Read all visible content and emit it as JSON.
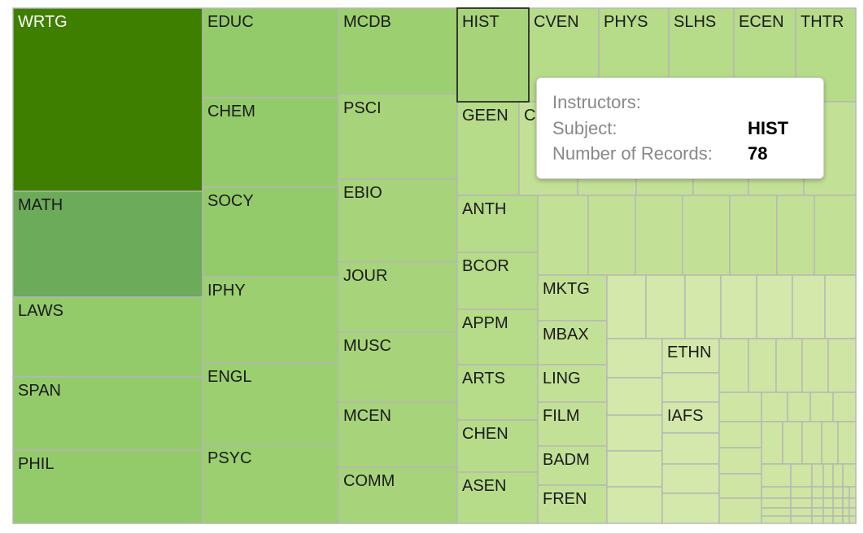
{
  "chart_data": {
    "type": "treemap",
    "measure": "Number of Records",
    "colors": {
      "dark": "#3f7f00",
      "mid": "#6bab59",
      "light": "#93cb6b",
      "pale": "#cfe5a3",
      "border": "#b6b6b6"
    },
    "labeled_cells": [
      "WRTG",
      "MATH",
      "LAWS",
      "SPAN",
      "PHIL",
      "EDUC",
      "CHEM",
      "SOCY",
      "IPHY",
      "ENGL",
      "PSYC",
      "MCDB",
      "PSCI",
      "EBIO",
      "JOUR",
      "MUSC",
      "MCEN",
      "COMM",
      "HIST",
      "CVEN",
      "PHYS",
      "SLHS",
      "ECEN",
      "THTR",
      "GEEN",
      "C",
      "ANTH",
      "BCOR",
      "APPM",
      "ARTS",
      "CHEN",
      "ASEN",
      "MKTG",
      "MBAX",
      "LING",
      "FILM",
      "BADM",
      "FREN",
      "ETHN",
      "IAFS"
    ],
    "highlighted": "HIST"
  },
  "tooltip": {
    "instructors_label": "Instructors:",
    "subject_label": "Subject:",
    "subject_value": "HIST",
    "records_label": "Number of Records:",
    "records_value": "78"
  }
}
